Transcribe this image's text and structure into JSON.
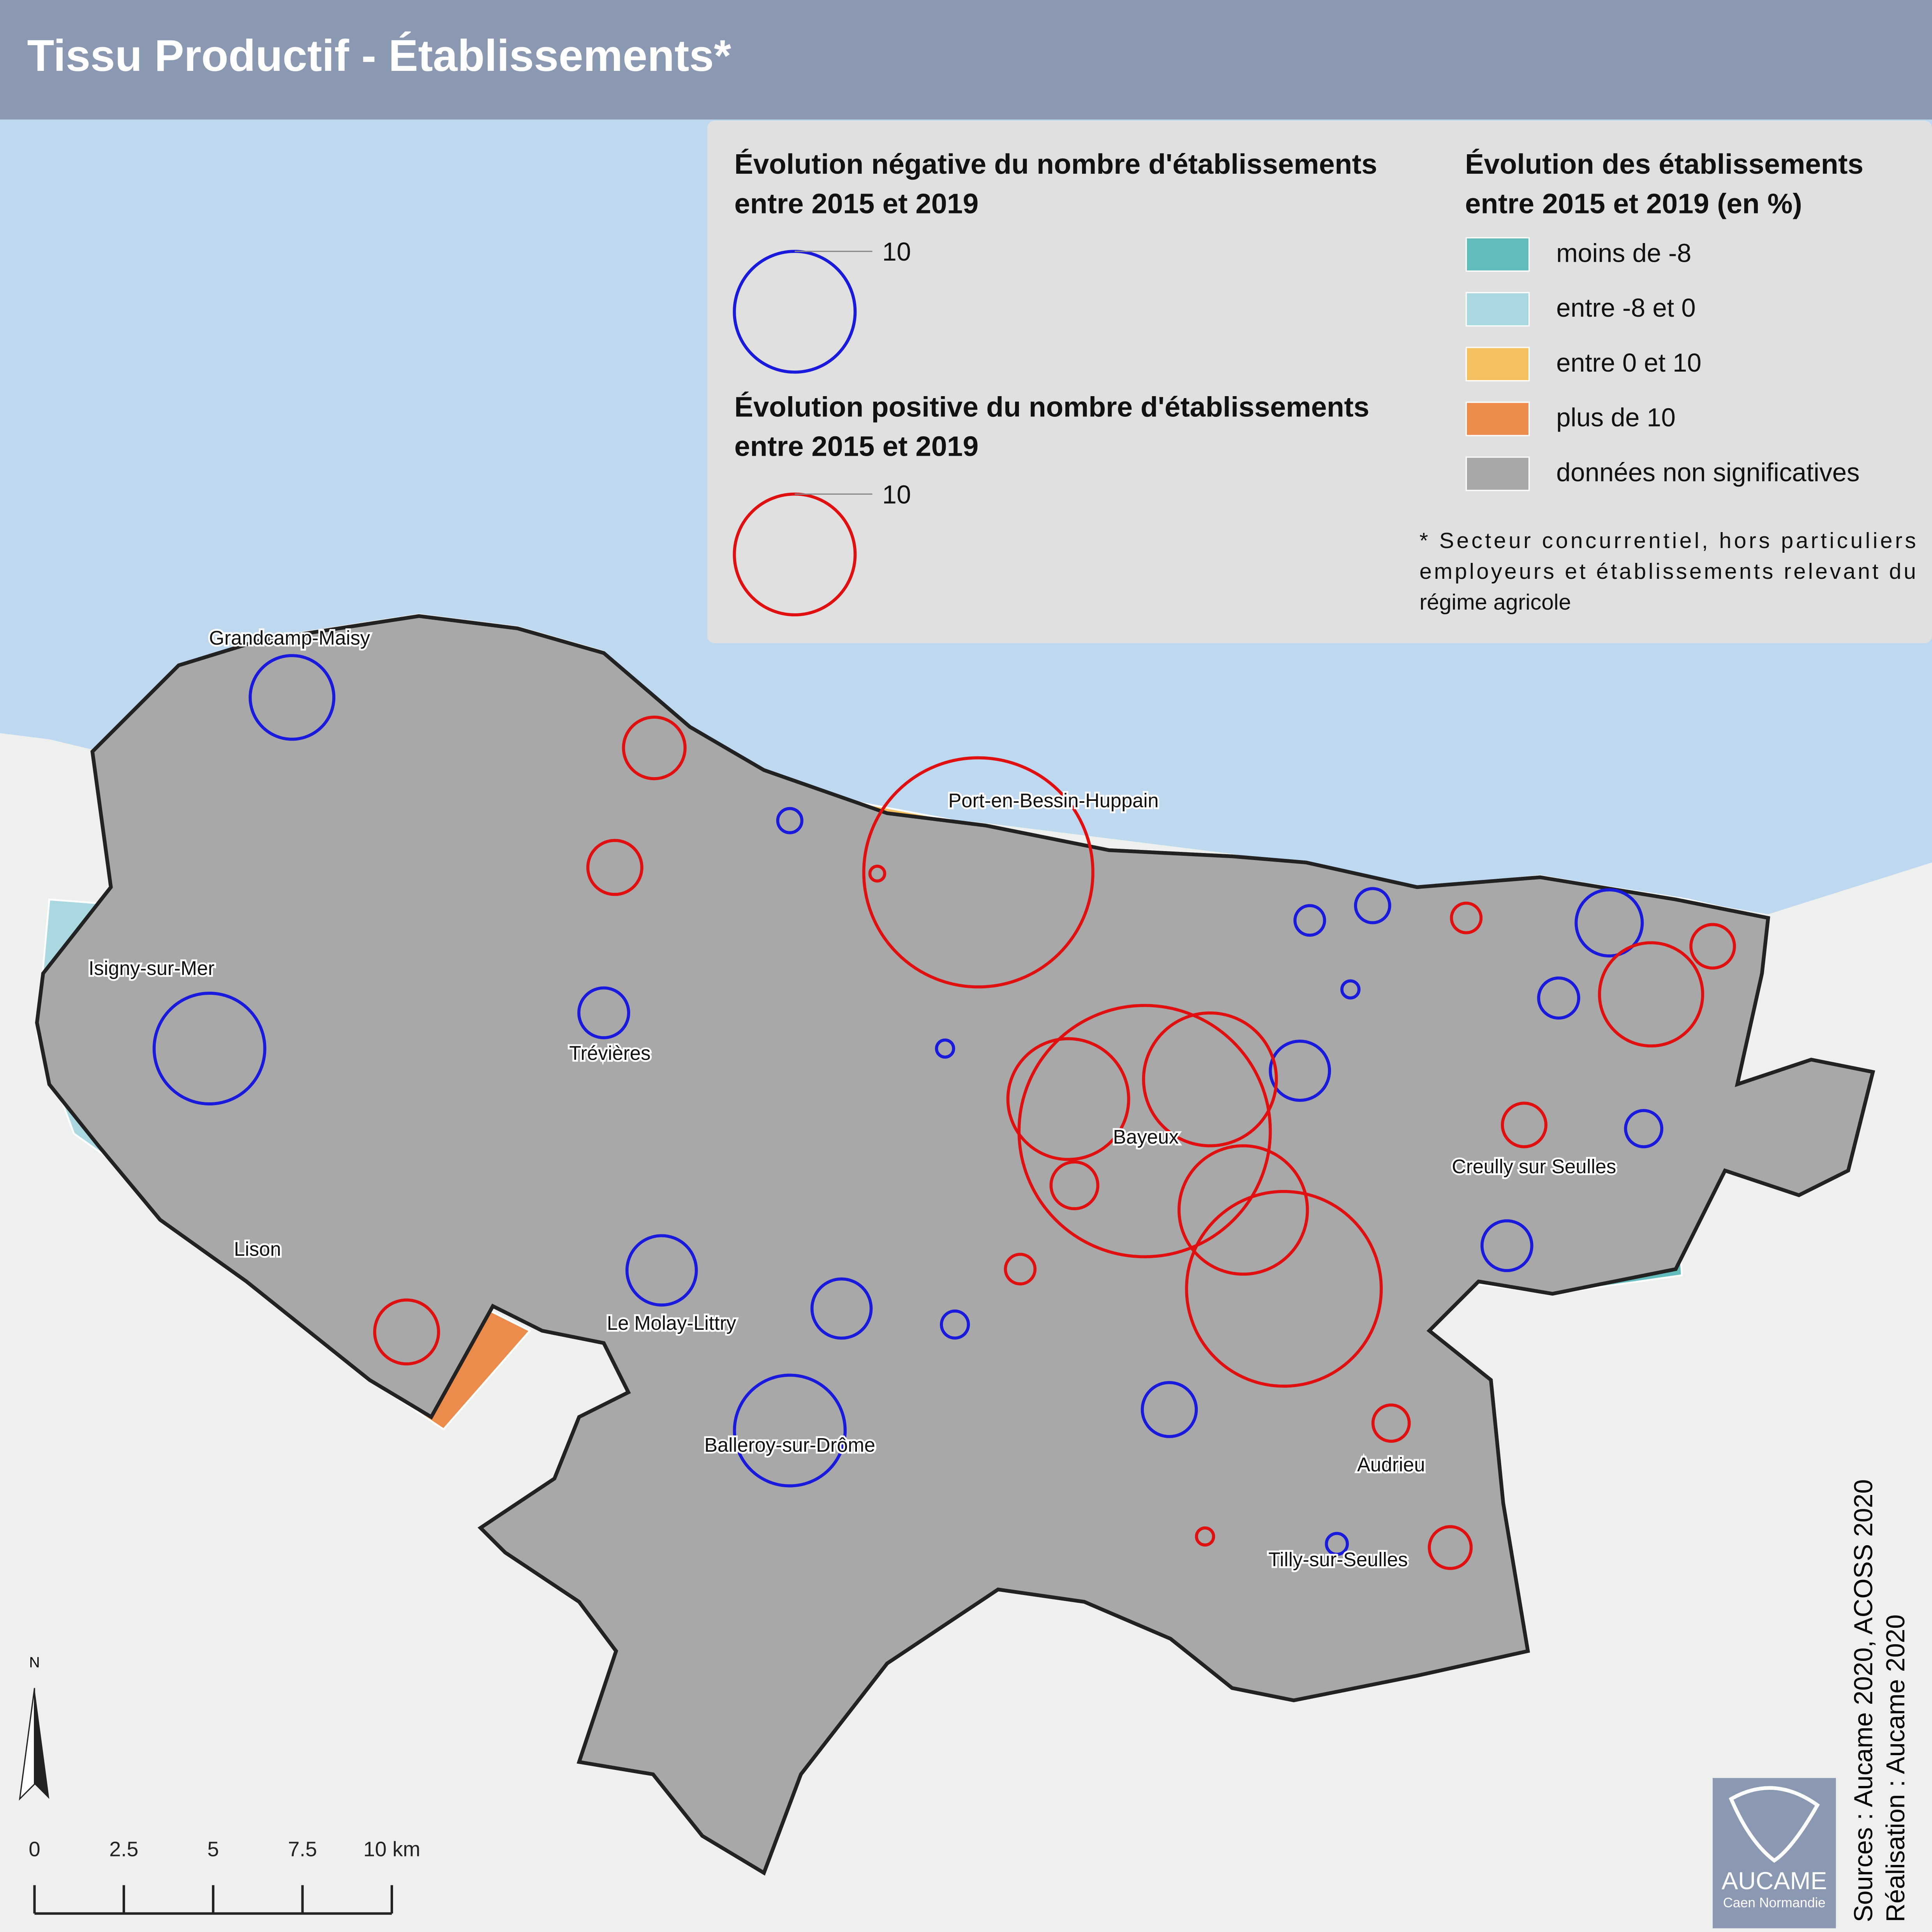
{
  "title": "Tissu Productif - Établissements*",
  "legend_negative": {
    "title_lines": [
      "Évolution négative du nombre d'établissements",
      "entre 2015 et 2019"
    ],
    "size_value": 10,
    "color": "#1a1adc"
  },
  "legend_positive": {
    "title_lines": [
      "Évolution positive du nombre d'établissements",
      "entre 2015 et 2019"
    ],
    "size_value": 10,
    "color": "#e01010"
  },
  "legend_classes": {
    "title_lines": [
      "Évolution des établissements",
      "entre 2015 et 2019 (en %)"
    ],
    "items": [
      {
        "name": "moins de -8",
        "color": "#62bcbc"
      },
      {
        "name": "entre -8 et 0",
        "color": "#a9d8e0"
      },
      {
        "name": "entre 0 et 10",
        "color": "#f5c060"
      },
      {
        "name": "plus de 10",
        "color": "#ec8c4c"
      },
      {
        "name": "données non significatives",
        "color": "#a8a8a8"
      }
    ]
  },
  "footnote_lines": [
    "* Secteur concurrentiel, hors particuliers",
    "employeurs et établissements relevant du",
    "régime agricole"
  ],
  "places": [
    "Grandcamp-Maisy",
    "Port-en-Bessin-Huppain",
    "Isigny-sur-Mer",
    "Trévières",
    "Bayeux",
    "Creully sur Seulles",
    "Lison",
    "Le Molay-Littry",
    "Balleroy-sur-Drôme",
    "Audrieu",
    "Tilly-sur-Seulles"
  ],
  "negative_circles": [
    4.8,
    0.4,
    1.7,
    8.4,
    0.2,
    3.3,
    2.4,
    0.5,
    8.4,
    0.6,
    0.8,
    0.2,
    3.0,
    1.1,
    2.4,
    0.9,
    1.7,
    2.0,
    0.3
  ],
  "positive_circles": [
    2.6,
    2.0,
    0.15,
    36.0,
    0.6,
    1.3,
    7.3,
    10,
    43.3,
    12.1,
    1.3,
    1.5,
    11.3,
    26.0,
    0.6,
    2.8,
    0.9,
    0.2,
    1.2
  ],
  "north": "N",
  "scale_labels": [
    "0",
    "2.5",
    "5",
    "7.5",
    "10 km"
  ],
  "sources": [
    "Sources : Aucame 2020, ACOSS 2020",
    "Réalisation : Aucame 2020"
  ],
  "logo": {
    "name": "AUCAME",
    "subtitle": "Caen Normandie"
  }
}
